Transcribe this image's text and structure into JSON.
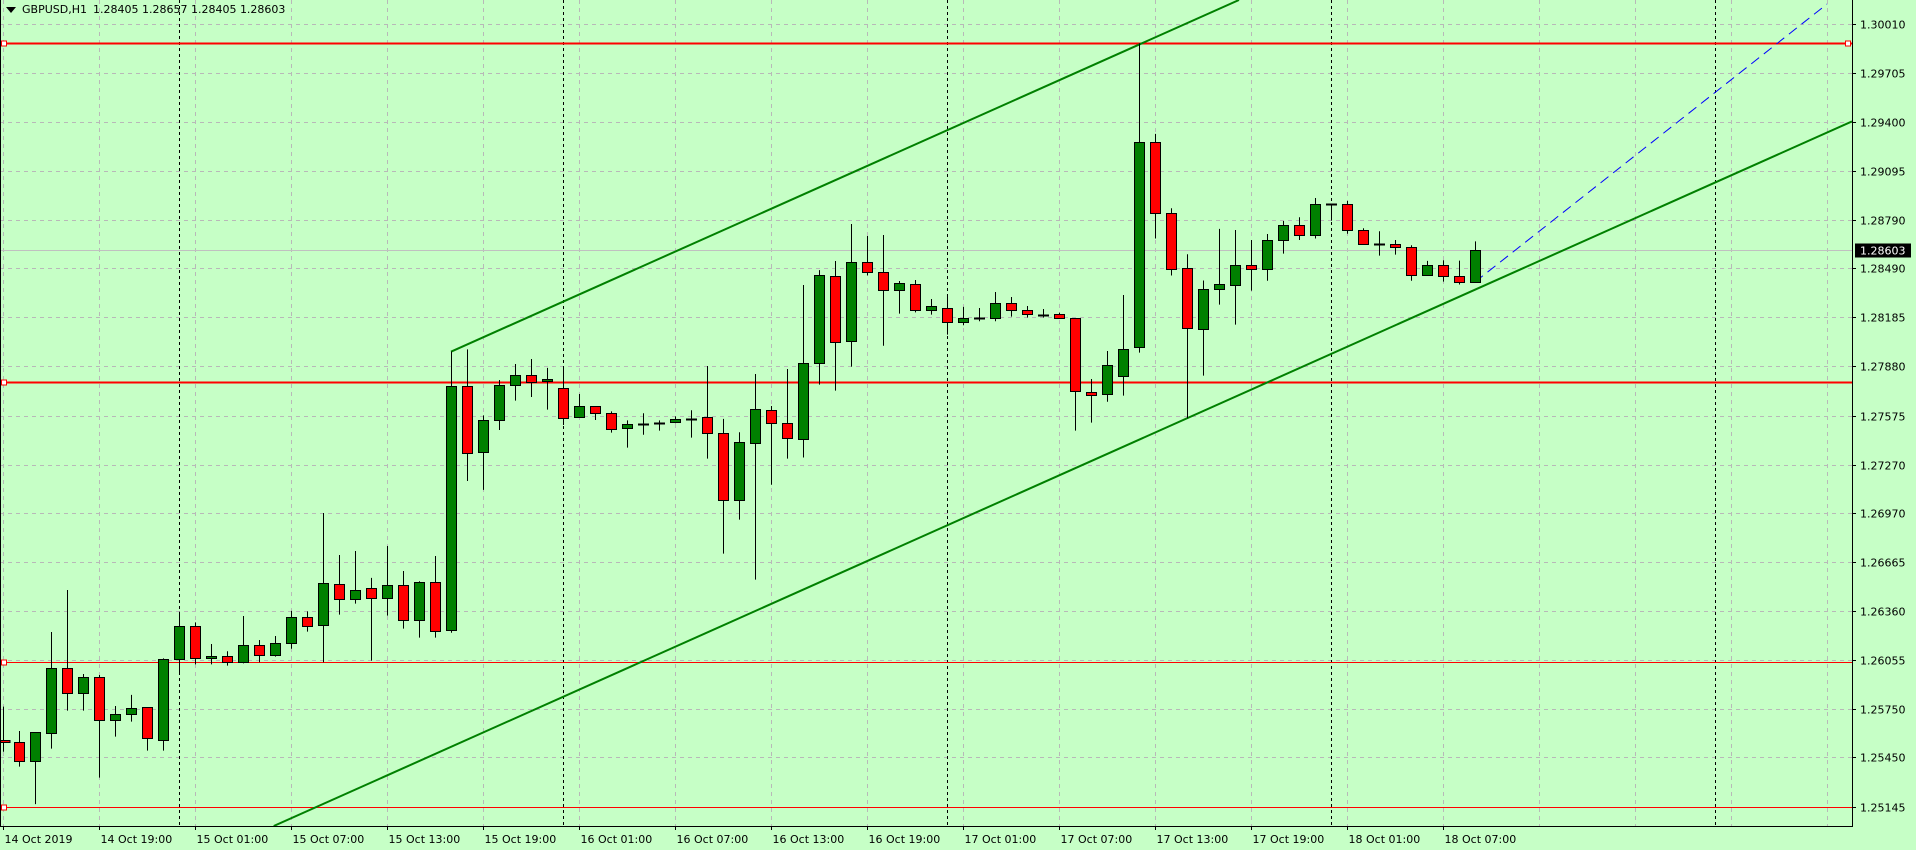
{
  "header": {
    "symbol_timeframe": "GBPUSD,H1",
    "ohlc_text": "1.28405 1.28657 1.28405 1.28603"
  },
  "chart_data": {
    "type": "candlestick",
    "symbol": "GBPUSD",
    "timeframe": "H1",
    "ohlc": {
      "open": 1.28405,
      "high": 1.28657,
      "low": 1.28405,
      "close": 1.28603
    },
    "ylim": [
      1.25145,
      1.3001
    ],
    "grid": true,
    "colors": {
      "background": "#c6ffc6",
      "bull": "#008000",
      "bear": "#ff0000",
      "outline": "#000000",
      "grid": "#b8b8b8",
      "level": "#ff0000",
      "trend": "#008000",
      "projection": "#0000ff",
      "price_line": "#c0c0c0"
    },
    "y_ticks": [
      "1.30010",
      "1.29705",
      "1.29400",
      "1.29095",
      "1.28790",
      "1.28490",
      "1.28185",
      "1.27880",
      "1.27575",
      "1.27270",
      "1.26970",
      "1.26665",
      "1.26360",
      "1.26055",
      "1.25750",
      "1.25450",
      "1.25145"
    ],
    "x_ticks": [
      {
        "t": "2019-10-14 13:00",
        "label": "14 Oct 2019"
      },
      {
        "t": "2019-10-14 19:00",
        "label": "14 Oct 19:00"
      },
      {
        "t": "2019-10-15 01:00",
        "label": "15 Oct 01:00"
      },
      {
        "t": "2019-10-15 07:00",
        "label": "15 Oct 07:00"
      },
      {
        "t": "2019-10-15 13:00",
        "label": "15 Oct 13:00"
      },
      {
        "t": "2019-10-15 19:00",
        "label": "15 Oct 19:00"
      },
      {
        "t": "2019-10-16 01:00",
        "label": "16 Oct 01:00"
      },
      {
        "t": "2019-10-16 07:00",
        "label": "16 Oct 07:00"
      },
      {
        "t": "2019-10-16 13:00",
        "label": "16 Oct 13:00"
      },
      {
        "t": "2019-10-16 19:00",
        "label": "16 Oct 19:00"
      },
      {
        "t": "2019-10-17 01:00",
        "label": "17 Oct 01:00"
      },
      {
        "t": "2019-10-17 07:00",
        "label": "17 Oct 07:00"
      },
      {
        "t": "2019-10-17 13:00",
        "label": "17 Oct 13:00"
      },
      {
        "t": "2019-10-17 19:00",
        "label": "17 Oct 19:00"
      },
      {
        "t": "2019-10-18 01:00",
        "label": "18 Oct 01:00"
      },
      {
        "t": "2019-10-18 07:00",
        "label": "18 Oct 07:00"
      }
    ],
    "extra_time_gridlines": [
      "2019-10-18 13:00",
      "2019-10-18 19:00",
      "2019-10-19 01:00",
      "2019-10-19 07:00"
    ],
    "day_separators": [
      "2019-10-15 00:00",
      "2019-10-16 00:00",
      "2019-10-17 00:00",
      "2019-10-18 00:00",
      "2019-10-19 00:00"
    ],
    "current_price": "1.28603",
    "horizontal_lines": [
      {
        "price": 1.29892,
        "thick": true,
        "right_marker": true
      },
      {
        "price": 1.27786,
        "thick": true,
        "right_marker": false
      },
      {
        "price": 1.26042,
        "thick": false,
        "right_marker": false
      },
      {
        "price": 1.25145,
        "thick": false,
        "right_marker": false
      }
    ],
    "trendlines": [
      {
        "from": [
          "2019-10-15 17:00",
          1.27972
        ],
        "to": [
          "2019-10-17 12:00",
          1.2988
        ],
        "extend": "right",
        "style": "solid"
      },
      {
        "from": [
          "2019-10-17 15:00",
          1.27558
        ],
        "to": [
          "2019-10-18 09:00",
          1.28357
        ],
        "extend": "both",
        "style": "solid"
      },
      {
        "from": [
          "2019-10-18 09:00",
          1.28405
        ],
        "to": [
          "2019-10-19 07:00",
          1.30132
        ],
        "extend": "none",
        "style": "dashed"
      }
    ],
    "candles": [
      [
        "2019-10-14 13:00",
        1.2556,
        1.25766,
        1.25486,
        1.25548
      ],
      [
        "2019-10-14 14:00",
        1.25544,
        1.25615,
        1.25393,
        1.25424
      ],
      [
        "2019-10-14 15:00",
        1.25424,
        1.25607,
        1.2516,
        1.25607
      ],
      [
        "2019-10-14 16:00",
        1.256,
        1.2623,
        1.25505,
        1.26004
      ],
      [
        "2019-10-14 17:00",
        1.26004,
        1.26491,
        1.25741,
        1.25849
      ],
      [
        "2019-10-14 18:00",
        1.25849,
        1.25969,
        1.25741,
        1.25948
      ],
      [
        "2019-10-14 19:00",
        1.25948,
        1.25963,
        1.25325,
        1.25683
      ],
      [
        "2019-10-14 20:00",
        1.25681,
        1.2577,
        1.2558,
        1.25718
      ],
      [
        "2019-10-14 21:00",
        1.25718,
        1.25839,
        1.25673,
        1.25756
      ],
      [
        "2019-10-14 22:00",
        1.25762,
        1.25762,
        1.25493,
        1.25569
      ],
      [
        "2019-10-14 23:00",
        1.25557,
        1.26066,
        1.25493,
        1.2606
      ],
      [
        "2019-10-15 00:00",
        1.2606,
        1.26356,
        1.25973,
        1.26265
      ],
      [
        "2019-10-15 01:00",
        1.26265,
        1.2629,
        1.26029,
        1.26066
      ],
      [
        "2019-10-15 02:00",
        1.26066,
        1.26155,
        1.26029,
        1.26079
      ],
      [
        "2019-10-15 03:00",
        1.26079,
        1.2611,
        1.26021,
        1.26042
      ],
      [
        "2019-10-15 04:00",
        1.26042,
        1.26329,
        1.26035,
        1.26147
      ],
      [
        "2019-10-15 05:00",
        1.26147,
        1.2618,
        1.26042,
        1.26085
      ],
      [
        "2019-10-15 06:00",
        1.26085,
        1.26205,
        1.26077,
        1.2616
      ],
      [
        "2019-10-15 07:00",
        1.2616,
        1.26361,
        1.26126,
        1.26321
      ],
      [
        "2019-10-15 08:00",
        1.26321,
        1.26358,
        1.26232,
        1.26265
      ],
      [
        "2019-10-15 09:00",
        1.26271,
        1.26969,
        1.26042,
        1.26532
      ],
      [
        "2019-10-15 10:00",
        1.26526,
        1.26708,
        1.26338,
        1.26433
      ],
      [
        "2019-10-15 11:00",
        1.26433,
        1.26733,
        1.26406,
        1.26489
      ],
      [
        "2019-10-15 12:00",
        1.26501,
        1.26566,
        1.26052,
        1.26439
      ],
      [
        "2019-10-15 13:00",
        1.26439,
        1.26764,
        1.26332,
        1.2652
      ],
      [
        "2019-10-15 14:00",
        1.2652,
        1.26609,
        1.26251,
        1.26302
      ],
      [
        "2019-10-15 15:00",
        1.26302,
        1.26545,
        1.26195,
        1.26538
      ],
      [
        "2019-10-15 16:00",
        1.26538,
        1.26702,
        1.26195,
        1.26232
      ],
      [
        "2019-10-15 17:00",
        1.2624,
        1.27972,
        1.26225,
        1.27757
      ],
      [
        "2019-10-15 18:00",
        1.27757,
        1.27986,
        1.27168,
        1.27338
      ],
      [
        "2019-10-15 19:00",
        1.27344,
        1.27576,
        1.27113,
        1.27545
      ],
      [
        "2019-10-15 20:00",
        1.27545,
        1.27796,
        1.27485,
        1.27763
      ],
      [
        "2019-10-15 21:00",
        1.27763,
        1.27895,
        1.27668,
        1.27825
      ],
      [
        "2019-10-15 22:00",
        1.27825,
        1.27926,
        1.2769,
        1.27781
      ],
      [
        "2019-10-15 23:00",
        1.27788,
        1.27871,
        1.27612,
        1.278
      ],
      [
        "2019-10-16 00:00",
        1.27744,
        1.27871,
        1.27516,
        1.27558
      ],
      [
        "2019-10-16 01:00",
        1.27564,
        1.27709,
        1.27564,
        1.27632
      ],
      [
        "2019-10-16 02:00",
        1.27632,
        1.27632,
        1.27547,
        1.27589
      ],
      [
        "2019-10-16 03:00",
        1.27589,
        1.27601,
        1.27469,
        1.27489
      ],
      [
        "2019-10-16 04:00",
        1.27496,
        1.27545,
        1.27376,
        1.27521
      ],
      [
        "2019-10-16 05:00",
        1.27525,
        1.27589,
        1.27456,
        1.27525
      ],
      [
        "2019-10-16 06:00",
        1.27531,
        1.27545,
        1.27481,
        1.27531
      ],
      [
        "2019-10-16 07:00",
        1.27533,
        1.2757,
        1.27527,
        1.27552
      ],
      [
        "2019-10-16 08:00",
        1.27556,
        1.27608,
        1.27438,
        1.27556
      ],
      [
        "2019-10-16 09:00",
        1.27564,
        1.27883,
        1.27307,
        1.27465
      ],
      [
        "2019-10-16 10:00",
        1.27465,
        1.27554,
        1.26717,
        1.27048
      ],
      [
        "2019-10-16 11:00",
        1.27048,
        1.27471,
        1.26928,
        1.27409
      ],
      [
        "2019-10-16 12:00",
        1.27402,
        1.27833,
        1.26555,
        1.27614
      ],
      [
        "2019-10-16 13:00",
        1.27608,
        1.27634,
        1.27145,
        1.27527
      ],
      [
        "2019-10-16 14:00",
        1.27527,
        1.27864,
        1.27307,
        1.27434
      ],
      [
        "2019-10-16 15:00",
        1.27427,
        1.28386,
        1.27314,
        1.279
      ],
      [
        "2019-10-16 16:00",
        1.279,
        1.28479,
        1.27767,
        1.28446
      ],
      [
        "2019-10-16 17:00",
        1.2844,
        1.28535,
        1.2773,
        1.2803
      ],
      [
        "2019-10-16 18:00",
        1.28036,
        1.28765,
        1.27879,
        1.28527
      ],
      [
        "2019-10-16 19:00",
        1.28527,
        1.28691,
        1.28446,
        1.28465
      ],
      [
        "2019-10-16 20:00",
        1.28465,
        1.28697,
        1.28009,
        1.28353
      ],
      [
        "2019-10-16 21:00",
        1.28353,
        1.28411,
        1.28208,
        1.28397
      ],
      [
        "2019-10-16 22:00",
        1.2839,
        1.28417,
        1.28216,
        1.28229
      ],
      [
        "2019-10-16 23:00",
        1.28229,
        1.28299,
        1.28202,
        1.28254
      ],
      [
        "2019-10-17 00:00",
        1.28241,
        1.28322,
        1.28078,
        1.28154
      ],
      [
        "2019-10-17 01:00",
        1.28154,
        1.2825,
        1.28136,
        1.28179
      ],
      [
        "2019-10-17 02:00",
        1.28184,
        1.28243,
        1.28161,
        1.28184
      ],
      [
        "2019-10-17 03:00",
        1.28179,
        1.28343,
        1.28161,
        1.28272
      ],
      [
        "2019-10-17 04:00",
        1.28272,
        1.28312,
        1.2819,
        1.28229
      ],
      [
        "2019-10-17 05:00",
        1.28229,
        1.28256,
        1.28184,
        1.28204
      ],
      [
        "2019-10-17 06:00",
        1.28202,
        1.28237,
        1.28184,
        1.28202
      ],
      [
        "2019-10-17 07:00",
        1.28204,
        1.28214,
        1.28175,
        1.28179
      ],
      [
        "2019-10-17 08:00",
        1.28179,
        1.28179,
        1.27481,
        1.27726
      ],
      [
        "2019-10-17 09:00",
        1.2772,
        1.27802,
        1.27531,
        1.27701
      ],
      [
        "2019-10-17 10:00",
        1.27707,
        1.27976,
        1.27661,
        1.27887
      ],
      [
        "2019-10-17 11:00",
        1.27817,
        1.28324,
        1.27699,
        1.27987
      ],
      [
        "2019-10-17 12:00",
        1.27999,
        1.29888,
        1.27966,
        1.29273
      ],
      [
        "2019-10-17 13:00",
        1.29273,
        1.29325,
        1.28675,
        1.28832
      ],
      [
        "2019-10-17 14:00",
        1.28832,
        1.28863,
        1.28445,
        1.28484
      ],
      [
        "2019-10-17 15:00",
        1.2849,
        1.28577,
        1.27558,
        1.28117
      ],
      [
        "2019-10-17 16:00",
        1.28111,
        1.28414,
        1.27823,
        1.2836
      ],
      [
        "2019-10-17 17:00",
        1.2836,
        1.28735,
        1.28264,
        1.28391
      ],
      [
        "2019-10-17 18:00",
        1.28382,
        1.28728,
        1.2814,
        1.28509
      ],
      [
        "2019-10-17 19:00",
        1.28509,
        1.28666,
        1.28351,
        1.28484
      ],
      [
        "2019-10-17 20:00",
        1.28484,
        1.28703,
        1.28413,
        1.28664
      ],
      [
        "2019-10-17 21:00",
        1.28664,
        1.28784,
        1.28581,
        1.28757
      ],
      [
        "2019-10-17 22:00",
        1.28757,
        1.28807,
        1.28666,
        1.28695
      ],
      [
        "2019-10-17 23:00",
        1.28695,
        1.28927,
        1.28675,
        1.28888
      ],
      [
        "2019-10-18 00:00",
        1.28888,
        1.28888,
        1.28786,
        1.28888
      ],
      [
        "2019-10-18 01:00",
        1.28888,
        1.28909,
        1.28705,
        1.28726
      ],
      [
        "2019-10-18 02:00",
        1.28726,
        1.28739,
        1.28639,
        1.28639
      ],
      [
        "2019-10-18 03:00",
        1.28639,
        1.2872,
        1.28569,
        1.28639
      ],
      [
        "2019-10-18 04:00",
        1.28639,
        1.28666,
        1.28575,
        1.28621
      ],
      [
        "2019-10-18 05:00",
        1.28621,
        1.28633,
        1.28413,
        1.28447
      ],
      [
        "2019-10-18 06:00",
        1.28447,
        1.28536,
        1.28447,
        1.28509
      ],
      [
        "2019-10-18 07:00",
        1.28509,
        1.2854,
        1.28407,
        1.2844
      ],
      [
        "2019-10-18 08:00",
        1.2844,
        1.28538,
        1.28389,
        1.28403
      ],
      [
        "2019-10-18 09:00",
        1.28405,
        1.28657,
        1.28405,
        1.28603
      ]
    ]
  }
}
